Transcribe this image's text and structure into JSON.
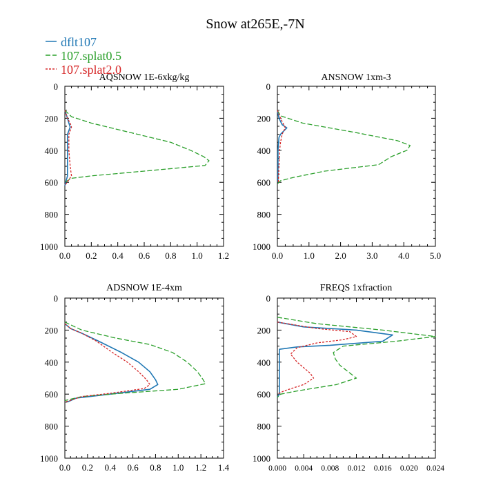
{
  "figure_title": "Snow at265E,-7N",
  "legend": [
    {
      "label": "dflt107",
      "color": "#1f77b4",
      "dash": "solid"
    },
    {
      "label": "107.splat0.5",
      "color": "#2ca02c",
      "dash": "dashed"
    },
    {
      "label": "107.splat2.0",
      "color": "#d62728",
      "dash": "dotted"
    }
  ],
  "chart_data": [
    {
      "type": "line",
      "title": "AQSNOW  1E-6xkg/kg",
      "xlim": [
        0,
        1.2
      ],
      "xticks": [
        0,
        0.2,
        0.4,
        0.6,
        0.8,
        1.0,
        1.2
      ],
      "xtick_labels": [
        "0.0",
        "0.2",
        "0.4",
        "0.6",
        "0.8",
        "1.0",
        "1.2"
      ],
      "ylim": [
        1000,
        0
      ],
      "yticks": [
        0,
        200,
        400,
        600,
        800,
        1000
      ],
      "ytick_labels": [
        "0",
        "200",
        "400",
        "600",
        "800",
        "1000"
      ],
      "series": [
        {
          "name": "dflt107",
          "values": [
            [
              0,
              150
            ],
            [
              0.02,
              200
            ],
            [
              0.03,
              230
            ],
            [
              0.04,
              255
            ],
            [
              0.02,
              300
            ],
            [
              0.02,
              400
            ],
            [
              0.02,
              500
            ],
            [
              0.02,
              560
            ],
            [
              0,
              620
            ]
          ]
        },
        {
          "name": "107.splat0.5",
          "values": [
            [
              0,
              150
            ],
            [
              0.05,
              190
            ],
            [
              0.2,
              230
            ],
            [
              0.5,
              290
            ],
            [
              0.8,
              350
            ],
            [
              0.95,
              400
            ],
            [
              1.05,
              440
            ],
            [
              1.09,
              465
            ],
            [
              1.06,
              495
            ],
            [
              0.6,
              530
            ],
            [
              0.2,
              560
            ],
            [
              0.05,
              575
            ],
            [
              0,
              600
            ]
          ]
        },
        {
          "name": "107.splat2.0",
          "values": [
            [
              0,
              150
            ],
            [
              0.02,
              200
            ],
            [
              0.04,
              230
            ],
            [
              0.05,
              255
            ],
            [
              0.03,
              300
            ],
            [
              0.03,
              400
            ],
            [
              0.04,
              500
            ],
            [
              0.05,
              560
            ],
            [
              0,
              620
            ]
          ]
        }
      ]
    },
    {
      "type": "line",
      "title": "ANSNOW  1xm-3",
      "xlim": [
        0,
        5.0
      ],
      "xticks": [
        0,
        1,
        2,
        3,
        4,
        5
      ],
      "xtick_labels": [
        "0.0",
        "1.0",
        "2.0",
        "3.0",
        "4.0",
        "5.0"
      ],
      "ylim": [
        1000,
        0
      ],
      "yticks": [
        0,
        200,
        400,
        600,
        800,
        1000
      ],
      "ytick_labels": [
        "0",
        "200",
        "400",
        "600",
        "800",
        "1000"
      ],
      "series": [
        {
          "name": "dflt107",
          "values": [
            [
              0,
              150
            ],
            [
              0.05,
              200
            ],
            [
              0.15,
              240
            ],
            [
              0.3,
              260
            ],
            [
              0.1,
              300
            ],
            [
              0.05,
              320
            ],
            [
              0.02,
              400
            ],
            [
              0.02,
              600
            ]
          ]
        },
        {
          "name": "107.splat0.5",
          "values": [
            [
              0,
              150
            ],
            [
              0.1,
              185
            ],
            [
              0.8,
              230
            ],
            [
              2.5,
              290
            ],
            [
              3.8,
              340
            ],
            [
              4.2,
              370
            ],
            [
              4.1,
              400
            ],
            [
              3.6,
              440
            ],
            [
              3.2,
              490
            ],
            [
              1.5,
              530
            ],
            [
              0.5,
              570
            ],
            [
              0.1,
              590
            ],
            [
              0,
              610
            ]
          ]
        },
        {
          "name": "107.splat2.0",
          "values": [
            [
              0,
              150
            ],
            [
              0.1,
              200
            ],
            [
              0.2,
              240
            ],
            [
              0.25,
              260
            ],
            [
              0.15,
              300
            ],
            [
              0.1,
              350
            ],
            [
              0.07,
              400
            ],
            [
              0.05,
              500
            ],
            [
              0.03,
              600
            ]
          ]
        }
      ]
    },
    {
      "type": "line",
      "title": "ADSNOW  1E-4xm",
      "xlim": [
        0,
        1.4
      ],
      "xticks": [
        0,
        0.2,
        0.4,
        0.6,
        0.8,
        1.0,
        1.2,
        1.4
      ],
      "xtick_labels": [
        "0.0",
        "0.2",
        "0.4",
        "0.6",
        "0.8",
        "1.0",
        "1.2",
        "1.4"
      ],
      "ylim": [
        1000,
        0
      ],
      "yticks": [
        0,
        200,
        400,
        600,
        800,
        1000
      ],
      "ytick_labels": [
        "0",
        "200",
        "400",
        "600",
        "800",
        "1000"
      ],
      "series": [
        {
          "name": "dflt107",
          "values": [
            [
              0,
              160
            ],
            [
              0.05,
              190
            ],
            [
              0.15,
              220
            ],
            [
              0.3,
              270
            ],
            [
              0.5,
              340
            ],
            [
              0.65,
              400
            ],
            [
              0.75,
              460
            ],
            [
              0.8,
              510
            ],
            [
              0.82,
              540
            ],
            [
              0.75,
              570
            ],
            [
              0.4,
              600
            ],
            [
              0.1,
              625
            ],
            [
              0.02,
              650
            ]
          ]
        },
        {
          "name": "107.splat0.5",
          "values": [
            [
              0,
              150
            ],
            [
              0.15,
              200
            ],
            [
              0.45,
              250
            ],
            [
              0.75,
              290
            ],
            [
              0.95,
              340
            ],
            [
              1.08,
              400
            ],
            [
              1.17,
              460
            ],
            [
              1.22,
              510
            ],
            [
              1.24,
              535
            ],
            [
              1.0,
              570
            ],
            [
              0.5,
              595
            ],
            [
              0.15,
              615
            ],
            [
              0,
              640
            ]
          ]
        },
        {
          "name": "107.splat2.0",
          "values": [
            [
              0,
              160
            ],
            [
              0.05,
              190
            ],
            [
              0.15,
              220
            ],
            [
              0.28,
              270
            ],
            [
              0.42,
              340
            ],
            [
              0.55,
              400
            ],
            [
              0.65,
              460
            ],
            [
              0.72,
              510
            ],
            [
              0.75,
              540
            ],
            [
              0.7,
              565
            ],
            [
              0.4,
              595
            ],
            [
              0.15,
              615
            ],
            [
              0,
              650
            ]
          ]
        }
      ]
    },
    {
      "type": "line",
      "title": "FREQS  1xfraction",
      "xlim": [
        0,
        0.024
      ],
      "xticks": [
        0,
        0.004,
        0.008,
        0.012,
        0.016,
        0.02,
        0.024
      ],
      "xtick_labels": [
        "0.000",
        "0.004",
        "0.008",
        "0.012",
        "0.016",
        "0.020",
        "0.024"
      ],
      "ylim": [
        1000,
        0
      ],
      "yticks": [
        0,
        200,
        400,
        600,
        800,
        1000
      ],
      "ytick_labels": [
        "0",
        "200",
        "400",
        "600",
        "800",
        "1000"
      ],
      "series": [
        {
          "name": "dflt107",
          "values": [
            [
              0,
              150
            ],
            [
              0.004,
              180
            ],
            [
              0.012,
              200
            ],
            [
              0.0175,
              230
            ],
            [
              0.016,
              270
            ],
            [
              0.008,
              295
            ],
            [
              0.003,
              305
            ],
            [
              0.0003,
              320
            ],
            [
              0.0003,
              400
            ],
            [
              0.0003,
              500
            ],
            [
              0.0003,
              550
            ],
            [
              0.0003,
              600
            ],
            [
              0,
              620
            ]
          ]
        },
        {
          "name": "107.splat0.5",
          "values": [
            [
              0,
              120
            ],
            [
              0.006,
              160
            ],
            [
              0.016,
              200
            ],
            [
              0.024,
              240
            ],
            [
              0.018,
              270
            ],
            [
              0.01,
              300
            ],
            [
              0.0085,
              340
            ],
            [
              0.0088,
              380
            ],
            [
              0.0095,
              420
            ],
            [
              0.012,
              500
            ],
            [
              0.009,
              540
            ],
            [
              0.003,
              580
            ],
            [
              0.0005,
              600
            ],
            [
              0,
              620
            ]
          ]
        },
        {
          "name": "107.splat2.0",
          "values": [
            [
              0,
              150
            ],
            [
              0.006,
              190
            ],
            [
              0.011,
              210
            ],
            [
              0.012,
              240
            ],
            [
              0.01,
              260
            ],
            [
              0.006,
              280
            ],
            [
              0.003,
              310
            ],
            [
              0.002,
              350
            ],
            [
              0.003,
              400
            ],
            [
              0.005,
              470
            ],
            [
              0.0055,
              500
            ],
            [
              0.004,
              540
            ],
            [
              0.001,
              580
            ],
            [
              0,
              600
            ]
          ]
        }
      ]
    }
  ]
}
